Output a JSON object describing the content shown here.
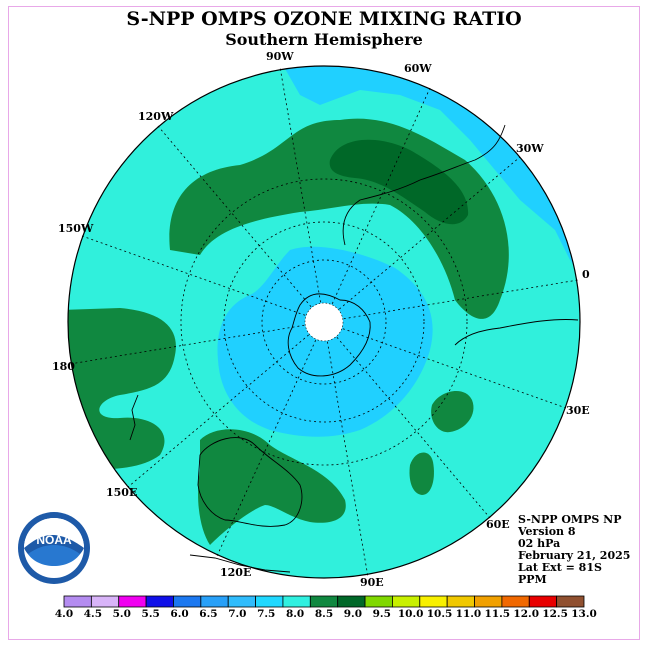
{
  "title": "S-NPP OMPS OZONE MIXING RATIO",
  "subtitle": "Southern Hemisphere",
  "longitude_labels": [
    "90W",
    "60W",
    "30W",
    "0",
    "30E",
    "60E",
    "90E",
    "120E",
    "150E",
    "180",
    "150W",
    "120W"
  ],
  "info": {
    "instrument": "S-NPP OMPS NP",
    "version": "Version 8",
    "level": "02 hPa",
    "date": "February 21, 2025",
    "lat_ext": "Lat Ext = 81S",
    "units": "PPM"
  },
  "logo_text": "NOAA",
  "colorbar": {
    "ticks": [
      "4.0",
      "4.5",
      "5.0",
      "5.5",
      "6.0",
      "6.5",
      "7.0",
      "7.5",
      "8.0",
      "8.5",
      "9.0",
      "9.5",
      "10.0",
      "10.5",
      "11.0",
      "11.5",
      "12.0",
      "12.5",
      "13.0"
    ],
    "colors": [
      "#b48cf0",
      "#d8b4f8",
      "#f000f0",
      "#1010e8",
      "#1c78f0",
      "#28a0f8",
      "#30bcfc",
      "#20d8ff",
      "#30f0e0",
      "#108840",
      "#006828",
      "#80d800",
      "#c8f000",
      "#f8f000",
      "#f0c800",
      "#f0a000",
      "#f06800",
      "#e80000",
      "#905030"
    ]
  },
  "map_colors": {
    "range_6_5_7": "#28a8f8",
    "range_7_7_5": "#20d0ff",
    "range_7_5_8": "#30f0dc",
    "range_8_8_5": "#108840",
    "range_8_5_9": "#006828",
    "pole_mask": "#ffffff"
  }
}
